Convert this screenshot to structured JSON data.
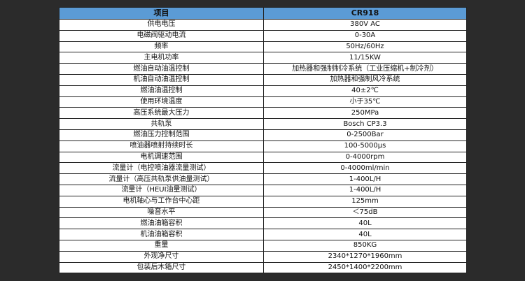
{
  "header": {
    "item": "项目",
    "model": "CR918"
  },
  "rows": [
    {
      "item": "供电电压",
      "value": "380V AC"
    },
    {
      "item": "电磁阀驱动电流",
      "value": "0-30A"
    },
    {
      "item": "频率",
      "value": "50Hz/60Hz"
    },
    {
      "item": "主电机功率",
      "value": "11/15KW"
    },
    {
      "item": "燃油自动油温控制",
      "value": "加热器和强制制冷系统（工业压缩机+制冷剂）"
    },
    {
      "item": "机油自动油温控制",
      "value": "加热器和强制风冷系统"
    },
    {
      "item": "燃油油温控制",
      "value": "40±2℃"
    },
    {
      "item": "使用环境温度",
      "value": "小于35℃"
    },
    {
      "item": "高压系统最大压力",
      "value": "250MPa"
    },
    {
      "item": "共轨泵",
      "value": "Bosch CP3.3"
    },
    {
      "item": "燃油压力控制范围",
      "value": "0-2500Bar"
    },
    {
      "item": "喷油器喷射持续时长",
      "value": "100-5000μs"
    },
    {
      "item": "电机调速范围",
      "value": "0-4000rpm"
    },
    {
      "item": "流量计（电控喷油器流量测试）",
      "value": "0-4000ml/min"
    },
    {
      "item": "流量计（高压共轨泵供油量测试）",
      "value": "1-400L/H"
    },
    {
      "item": "流量计（HEUI油量测试）",
      "value": "1-400L/H"
    },
    {
      "item": "电机轴心与工作台中心距",
      "value": "125mm"
    },
    {
      "item": "噪音水平",
      "value": "＜75dB"
    },
    {
      "item": "燃油油箱容积",
      "value": "40L"
    },
    {
      "item": "机油油箱容积",
      "value": "40L"
    },
    {
      "item": "重量",
      "value": "850KG"
    },
    {
      "item": "外观净尺寸",
      "value": "2340*1270*1960mm"
    },
    {
      "item": "包装后木箱尺寸",
      "value": "2450*1400*2200mm"
    }
  ],
  "colors": {
    "header_bg": "#5b9bd5",
    "page_bg": "#2b2b2b"
  }
}
